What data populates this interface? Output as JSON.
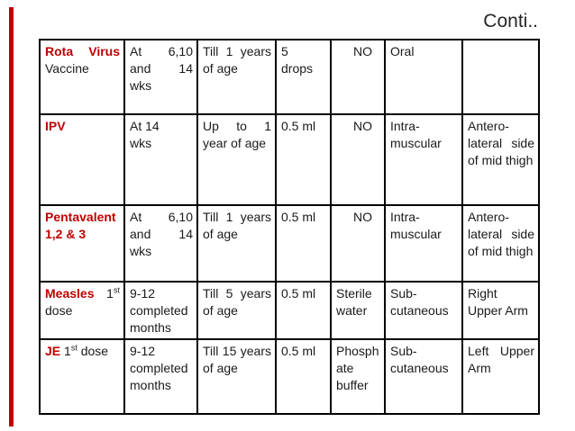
{
  "slide": {
    "continued_label": "Conti..",
    "accent_red": "#c00000",
    "text_color": "#1a1a1a",
    "border_color": "#000000"
  },
  "table": {
    "rows": [
      {
        "vaccine": {
          "red": "Rota Virus",
          "mid": "",
          "sup": "",
          "rest": " Vaccine"
        },
        "schedule": "At 6,10 and 14 wks",
        "age_limit": "Till 1 years of age",
        "dose": "5\ndrops",
        "diluent": "NO",
        "route": "Oral",
        "site": ""
      },
      {
        "vaccine": {
          "red": "IPV",
          "mid": "",
          "sup": "",
          "rest": ""
        },
        "schedule": "At 14\nwks",
        "age_limit": "Up to 1 year of age",
        "dose": "0.5 ml",
        "diluent": "NO",
        "route": "Intra-muscular",
        "site": "Antero-lateral side of mid thigh"
      },
      {
        "vaccine": {
          "red": "Pentavalent 1,2 & 3",
          "mid": "",
          "sup": "",
          "rest": ""
        },
        "schedule": "At 6,10 and 14 wks",
        "age_limit": "Till 1 years of age",
        "dose": "0.5 ml",
        "diluent": "NO",
        "route": "Intra-muscular",
        "site": "Antero-lateral side of mid thigh"
      },
      {
        "vaccine": {
          "red": "Measles",
          "mid": " 1",
          "sup": "st",
          "rest": " dose"
        },
        "schedule": "9-12 completed months",
        "age_limit": "Till 5 years of age",
        "dose": "0.5 ml",
        "diluent": "Sterile water",
        "route": "Sub-cutaneous",
        "site": "Right Upper Arm"
      },
      {
        "vaccine": {
          "red": "JE",
          "mid": " 1",
          "sup": "st",
          "rest": " dose"
        },
        "schedule": "9-12 completed months",
        "age_limit": "Till 15 years of age",
        "dose": "0.5 ml",
        "diluent": "Phosphate buffer",
        "route": "Sub-cutaneous",
        "site": "Left Upper Arm"
      }
    ]
  }
}
